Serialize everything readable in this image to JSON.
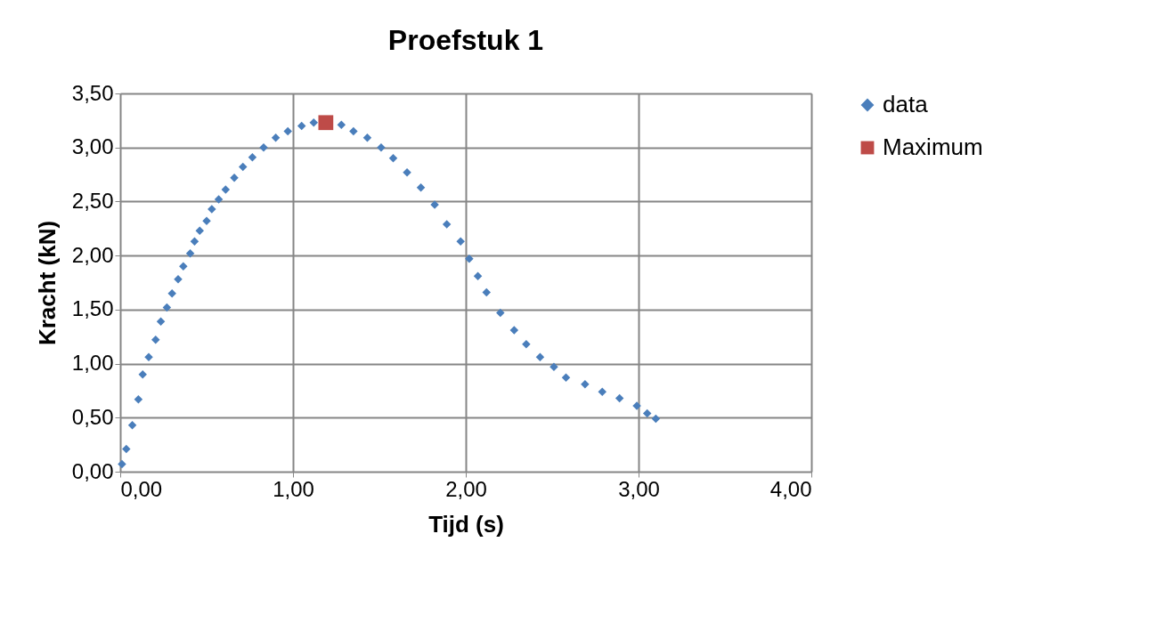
{
  "chart_data": {
    "type": "scatter",
    "title": "Proefstuk 1",
    "xlabel": "Tijd (s)",
    "ylabel": "Kracht  (kN)",
    "xlim": [
      0,
      4
    ],
    "xticks": [
      {
        "value": 0,
        "label": "0,00"
      },
      {
        "value": 1,
        "label": "1,00"
      },
      {
        "value": 2,
        "label": "2,00"
      },
      {
        "value": 3,
        "label": "3,00"
      },
      {
        "value": 4,
        "label": "4,00"
      }
    ],
    "ylim": [
      0,
      3.5
    ],
    "yticks": [
      {
        "value": 0,
        "label": "0,00"
      },
      {
        "value": 0.5,
        "label": "0,50"
      },
      {
        "value": 1,
        "label": "1,00"
      },
      {
        "value": 1.5,
        "label": "1,50"
      },
      {
        "value": 2,
        "label": "2,00"
      },
      {
        "value": 2.5,
        "label": "2,50"
      },
      {
        "value": 3,
        "label": "3,00"
      },
      {
        "value": 3.5,
        "label": "3,50"
      }
    ],
    "grid": true,
    "legend": "right",
    "series": [
      {
        "name": "data",
        "color": "#4a7ebb",
        "marker": "diamond",
        "x": [
          0.01,
          0.035,
          0.07,
          0.105,
          0.13,
          0.165,
          0.205,
          0.235,
          0.27,
          0.3,
          0.335,
          0.365,
          0.405,
          0.43,
          0.46,
          0.5,
          0.53,
          0.57,
          0.61,
          0.66,
          0.71,
          0.765,
          0.83,
          0.9,
          0.97,
          1.05,
          1.12,
          1.28,
          1.35,
          1.43,
          1.51,
          1.58,
          1.66,
          1.74,
          1.82,
          1.89,
          1.97,
          2.02,
          2.07,
          2.12,
          2.2,
          2.28,
          2.35,
          2.43,
          2.51,
          2.58,
          2.69,
          2.79,
          2.89,
          2.99,
          3.05,
          3.1
        ],
        "values": [
          0.07,
          0.21,
          0.43,
          0.67,
          0.9,
          1.06,
          1.22,
          1.39,
          1.52,
          1.65,
          1.78,
          1.9,
          2.02,
          2.13,
          2.23,
          2.32,
          2.43,
          2.52,
          2.61,
          2.72,
          2.82,
          2.91,
          3.0,
          3.09,
          3.15,
          3.2,
          3.23,
          3.21,
          3.15,
          3.09,
          3.0,
          2.9,
          2.77,
          2.63,
          2.47,
          2.29,
          2.13,
          1.97,
          1.81,
          1.66,
          1.47,
          1.31,
          1.18,
          1.06,
          0.97,
          0.87,
          0.81,
          0.74,
          0.68,
          0.61,
          0.54,
          0.49
        ]
      },
      {
        "name": "Maximum",
        "color": "#be4b48",
        "marker": "square",
        "x": [
          1.19
        ],
        "values": [
          3.23
        ]
      }
    ]
  }
}
